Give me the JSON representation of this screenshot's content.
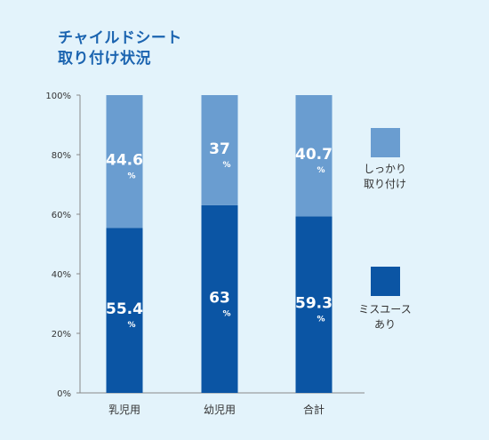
{
  "title": {
    "line1": "チャイルドシート",
    "line2": "取り付け状況"
  },
  "unit": "%",
  "colors": {
    "background": "#e3f3fb",
    "title": "#1b64b0",
    "top_series": "#6a9dd0",
    "bottom_series": "#0b55a4",
    "axis": "#888888"
  },
  "chart_data": {
    "type": "bar",
    "stacked": true,
    "categories": [
      "乳児用",
      "幼児用",
      "合計"
    ],
    "series": [
      {
        "name": "ミスユースあり",
        "values": [
          55.4,
          63,
          59.3
        ],
        "labels": [
          "55.4",
          "63",
          "59.3"
        ],
        "color": "#0b55a4"
      },
      {
        "name": "しっかり取り付け",
        "values": [
          44.6,
          37,
          40.7
        ],
        "labels": [
          "44.6",
          "37",
          "40.7"
        ],
        "color": "#6a9dd0"
      }
    ],
    "ylim": [
      0,
      100
    ],
    "yticks": [
      "0%",
      "20%",
      "40%",
      "60%",
      "80%",
      "100%"
    ],
    "legend": {
      "placement": "right",
      "entries": [
        {
          "series": "しっかり取り付け",
          "lines": [
            "しっかり",
            "取り付け"
          ]
        },
        {
          "series": "ミスユースあり",
          "lines": [
            "ミスユース",
            "あり"
          ]
        }
      ]
    }
  }
}
